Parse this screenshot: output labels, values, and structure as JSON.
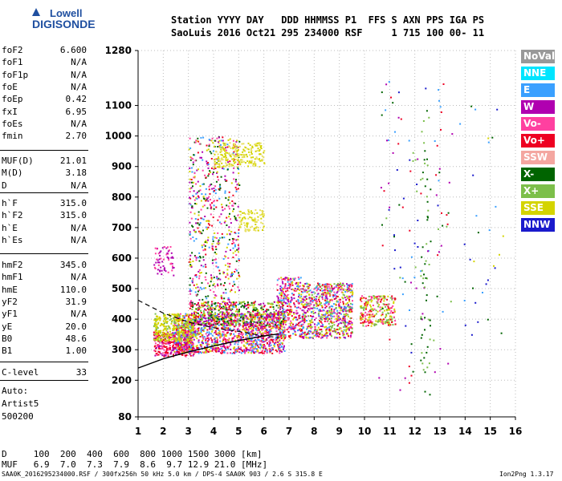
{
  "logo": {
    "line1": "Lowell",
    "line2": "DIGISONDE"
  },
  "header": {
    "labels": "Station YYYY DAY   DDD HHMMSS P1  FFS S AXN PPS IGA PS",
    "values": "SaoLuis 2016 Oct21 295 234000 RSF     1 715 100 00- 11"
  },
  "params_group1": [
    {
      "name": "foF2",
      "value": "6.600"
    },
    {
      "name": "foF1",
      "value": "N/A"
    },
    {
      "name": "foF1p",
      "value": "N/A"
    },
    {
      "name": "foE",
      "value": "N/A"
    },
    {
      "name": "foEp",
      "value": "0.42"
    },
    {
      "name": "fxI",
      "value": "6.95"
    },
    {
      "name": "foEs",
      "value": "N/A"
    },
    {
      "name": "fmin",
      "value": "2.70"
    }
  ],
  "params_group2": [
    {
      "name": "MUF(D)",
      "value": "21.01"
    },
    {
      "name": "M(D)",
      "value": "3.18"
    },
    {
      "name": "D",
      "value": "N/A"
    }
  ],
  "params_group3": [
    {
      "name": "h`F",
      "value": "315.0"
    },
    {
      "name": "h`F2",
      "value": "315.0"
    },
    {
      "name": "h`E",
      "value": "N/A"
    },
    {
      "name": "h`Es",
      "value": "N/A"
    }
  ],
  "params_group4": [
    {
      "name": "hmF2",
      "value": "345.0"
    },
    {
      "name": "hmF1",
      "value": "N/A"
    },
    {
      "name": "hmE",
      "value": "110.0"
    },
    {
      "name": "yF2",
      "value": "31.9"
    },
    {
      "name": "yF1",
      "value": "N/A"
    },
    {
      "name": "yE",
      "value": "20.0"
    },
    {
      "name": "B0",
      "value": "48.6"
    },
    {
      "name": "B1",
      "value": "1.00"
    }
  ],
  "c_level": {
    "name": "C-level",
    "value": "33"
  },
  "autoscaling": {
    "line1": "Auto:",
    "line2": "Artist5",
    "line3": "500200"
  },
  "legend": [
    {
      "label": "NoVal",
      "color": "#999999"
    },
    {
      "label": "NNE",
      "color": "#00e5ff"
    },
    {
      "label": "E",
      "color": "#3aa0ff"
    },
    {
      "label": "W",
      "color": "#b000b0"
    },
    {
      "label": "Vo-",
      "color": "#ff40a0"
    },
    {
      "label": "Vo+",
      "color": "#ee0022"
    },
    {
      "label": "SSW",
      "color": "#f4a6a0"
    },
    {
      "label": "X-",
      "color": "#006400"
    },
    {
      "label": "X+",
      "color": "#7cbf4a"
    },
    {
      "label": "SSE",
      "color": "#d4d400"
    },
    {
      "label": "NNW",
      "color": "#1a1acc"
    }
  ],
  "muf_table": {
    "d_row": "D     100  200  400  600  800 1000 1500 3000 [km]",
    "muf_row": "MUF   6.9  7.0  7.3  7.9  8.6  9.7 12.9 21.0 [MHz]"
  },
  "footer": {
    "left": "SAA0K_2016295234000.RSF / 300fx256h 50 kHz 5.0 km / DPS-4 SAA0K 903 / 2.6 S 315.8 E",
    "right": "Ion2Png 1.3.17"
  },
  "chart_data": {
    "type": "scatter",
    "title": "",
    "xlabel": "",
    "ylabel": "",
    "x_ticks": [
      1,
      2,
      3,
      4,
      5,
      6,
      7,
      8,
      9,
      10,
      11,
      12,
      13,
      14,
      15,
      16
    ],
    "y_ticks": [
      80,
      200,
      300,
      400,
      500,
      600,
      700,
      800,
      900,
      1000,
      1100,
      1280
    ],
    "xlim": [
      1,
      16
    ],
    "ylim": [
      80,
      1280
    ],
    "grid": true,
    "profile_curve": [
      [
        1.0,
        240
      ],
      [
        2.0,
        270
      ],
      [
        3.0,
        293
      ],
      [
        4.0,
        312
      ],
      [
        5.0,
        330
      ],
      [
        6.0,
        345
      ],
      [
        6.6,
        352
      ]
    ],
    "trace_curve": [
      [
        1.0,
        462
      ],
      [
        2.0,
        420
      ],
      [
        3.0,
        390
      ],
      [
        4.0,
        372
      ],
      [
        5.0,
        360
      ],
      [
        6.0,
        345
      ],
      [
        6.6,
        340
      ]
    ],
    "echo_clusters": [
      {
        "x": [
          1.6,
          3.2
        ],
        "y": [
          280,
          360
        ],
        "density": 0.9,
        "colors": [
          "#ee0022",
          "#ff40a0",
          "#b000b0",
          "#ee0022"
        ]
      },
      {
        "x": [
          2.4,
          6.8
        ],
        "y": [
          290,
          420
        ],
        "density": 0.8,
        "colors": [
          "#ee0022",
          "#ff40a0",
          "#d4d400",
          "#b000b0",
          "#3aa0ff"
        ]
      },
      {
        "x": [
          1.6,
          3.2
        ],
        "y": [
          330,
          420
        ],
        "density": 0.7,
        "colors": [
          "#d4d400",
          "#7cbf4a",
          "#d4d400"
        ]
      },
      {
        "x": [
          3.0,
          6.8
        ],
        "y": [
          380,
          460
        ],
        "density": 0.6,
        "colors": [
          "#d4d400",
          "#7cbf4a",
          "#ee0022",
          "#b000b0",
          "#006400"
        ]
      },
      {
        "x": [
          3.0,
          5.0
        ],
        "y": [
          440,
          1000
        ],
        "density": 0.18,
        "colors": [
          "#b000b0",
          "#ff40a0",
          "#ee0022",
          "#3aa0ff",
          "#d4d400",
          "#006400"
        ]
      },
      {
        "x": [
          4.0,
          6.0
        ],
        "y": [
          900,
          980
        ],
        "density": 0.45,
        "colors": [
          "#d4d400",
          "#e8e060"
        ]
      },
      {
        "x": [
          5.0,
          6.0
        ],
        "y": [
          690,
          760
        ],
        "density": 0.45,
        "colors": [
          "#d4d400",
          "#e8e060"
        ]
      },
      {
        "x": [
          6.5,
          7.5
        ],
        "y": [
          340,
          540
        ],
        "density": 0.55,
        "colors": [
          "#ee0022",
          "#b000b0",
          "#d4d400",
          "#3aa0ff",
          "#ff40a0"
        ]
      },
      {
        "x": [
          7.5,
          9.5
        ],
        "y": [
          340,
          520
        ],
        "density": 0.7,
        "colors": [
          "#ee0022",
          "#b000b0",
          "#ff40a0",
          "#3aa0ff",
          "#d4d400",
          "#7cbf4a"
        ]
      },
      {
        "x": [
          9.8,
          11.2
        ],
        "y": [
          380,
          480
        ],
        "density": 0.6,
        "colors": [
          "#d4d400",
          "#7cbf4a",
          "#ff40a0",
          "#ee0022"
        ]
      },
      {
        "x": [
          10.5,
          13.5
        ],
        "y": [
          150,
          1200
        ],
        "density": 0.012,
        "colors": [
          "#006400",
          "#7cbf4a",
          "#ee0022",
          "#b000b0",
          "#1a1acc",
          "#3aa0ff"
        ]
      },
      {
        "x": [
          12.2,
          12.6
        ],
        "y": [
          150,
          1100
        ],
        "density": 0.05,
        "colors": [
          "#006400",
          "#7cbf4a"
        ]
      },
      {
        "x": [
          13.5,
          15.5
        ],
        "y": [
          300,
          1150
        ],
        "density": 0.006,
        "colors": [
          "#006400",
          "#1a1acc",
          "#d4d400",
          "#3aa0ff"
        ]
      },
      {
        "x": [
          1.6,
          2.4
        ],
        "y": [
          540,
          640
        ],
        "density": 0.25,
        "colors": [
          "#b000b0",
          "#ff40a0"
        ]
      }
    ]
  }
}
